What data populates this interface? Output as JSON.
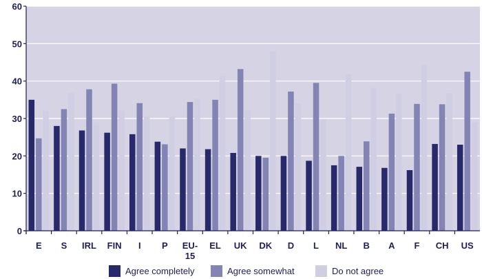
{
  "chart_data": {
    "type": "bar",
    "title": "",
    "xlabel": "",
    "ylabel": "",
    "ylim": [
      0,
      60
    ],
    "yticks": [
      0,
      10,
      20,
      30,
      40,
      50,
      60
    ],
    "grid": true,
    "legend_position": "bottom",
    "categories": [
      "E",
      "S",
      "IRL",
      "FIN",
      "I",
      "P",
      "EU-15",
      "EL",
      "UK",
      "DK",
      "D",
      "L",
      "NL",
      "B",
      "A",
      "F",
      "CH",
      "US"
    ],
    "series": [
      {
        "name": "Agree completely",
        "color": "#27296a",
        "values": [
          35.0,
          28.0,
          26.8,
          26.2,
          25.8,
          23.8,
          22.0,
          21.8,
          20.8,
          20.0,
          20.0,
          18.7,
          17.5,
          17.1,
          16.8,
          16.2,
          23.2,
          23.0
        ]
      },
      {
        "name": "Agree somewhat",
        "color": "#8383b4",
        "values": [
          24.7,
          32.5,
          37.8,
          39.3,
          34.1,
          23.1,
          34.4,
          35.0,
          43.2,
          19.5,
          37.2,
          39.5,
          20.0,
          23.9,
          31.3,
          33.9,
          33.8,
          42.5
        ]
      },
      {
        "name": "Do not agree",
        "color": "#cfcee2",
        "values": [
          32.1,
          36.8,
          29.0,
          32.1,
          30.5,
          30.5,
          35.3,
          41.4,
          32.3,
          48.0,
          34.0,
          29.8,
          41.9,
          38.2,
          36.6,
          44.3,
          36.8,
          29.0
        ]
      }
    ]
  },
  "colors": {
    "plot_background": "#d6d4e4",
    "gridline": "#ffffff",
    "axis": "#1e1e5a",
    "text": "#1e1e5a"
  }
}
